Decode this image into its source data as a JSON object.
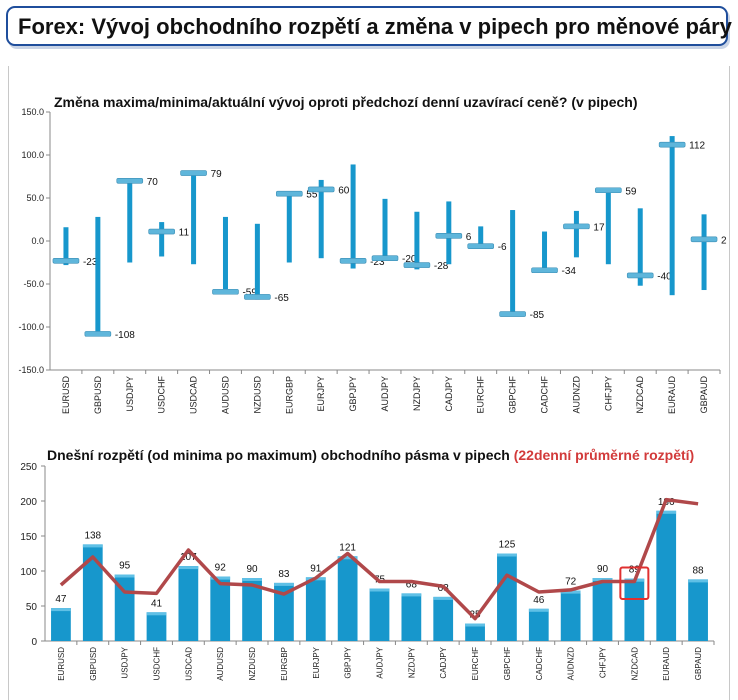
{
  "header": {
    "title": "Forex: Vývoj obchodního rozpětí a změna v pipech pro měnové páry"
  },
  "chart_data": [
    {
      "type": "range",
      "title": "Změna maxima/minima/aktuální vývoj oproti předchozí denní uzavírací ceně? (v pipech)",
      "categories": [
        "EURUSD",
        "GBPUSD",
        "USDJPY",
        "USDCHF",
        "USDCAD",
        "AUDUSD",
        "NZDUSD",
        "EURGBP",
        "EURJPY",
        "GBPJPY",
        "AUDJPY",
        "NZDJPY",
        "CADJPY",
        "EURCHF",
        "GBPCHF",
        "CADCHF",
        "AUDNZD",
        "CHFJPY",
        "NZDCAD",
        "EURAUD",
        "GBPAUD"
      ],
      "high": [
        16,
        28,
        70,
        22,
        80,
        28,
        20,
        55,
        71,
        89,
        49,
        34,
        46,
        17,
        36,
        11,
        35,
        62,
        38,
        122,
        31
      ],
      "low": [
        -28,
        -108,
        -25,
        -18,
        -27,
        -62,
        -68,
        -25,
        -20,
        -32,
        -22,
        -33,
        -27,
        -7,
        -87,
        -37,
        -19,
        -27,
        -52,
        -63,
        -57
      ],
      "current": [
        -23,
        -108,
        70,
        11,
        79,
        -59,
        -65,
        55,
        60,
        -23,
        -20,
        -28,
        6,
        -6,
        -85,
        -34,
        17,
        59,
        -40,
        112,
        2
      ],
      "labels": [
        "-23",
        "-108",
        "70",
        "11",
        "79",
        "-59",
        "-65",
        "55",
        "60",
        "-23",
        "-20",
        "-28",
        "6",
        "-6",
        "-85",
        "-34",
        "17",
        "59",
        "-40",
        "112",
        "2"
      ],
      "yticks": [
        "150.0",
        "100.0",
        "50.0",
        "0.0",
        "-50.0",
        "-100.0",
        "-150.0"
      ],
      "ylim": [
        -150,
        150
      ],
      "colors": {
        "range": "#1797cc",
        "marker": "#5fb6db"
      }
    },
    {
      "type": "bar+line",
      "title": "Dnešní rozpětí (od minima po maximum) obchodního pásma v pipech",
      "title_highlight": "(22denní průměrné rozpětí)",
      "categories": [
        "EURUSD",
        "GBPUSD",
        "USDJPY",
        "USDCHF",
        "USDCAD",
        "AUDUSD",
        "NZDUSD",
        "EURGBP",
        "EURJPY",
        "GBPJPY",
        "AUDJPY",
        "NZDJPY",
        "CADJPY",
        "EURCHF",
        "GBPCHF",
        "CADCHF",
        "AUDNZD",
        "CHFJPY",
        "NZDCAD",
        "EURAUD",
        "GBPAUD"
      ],
      "values": [
        47,
        138,
        95,
        41,
        107,
        92,
        90,
        83,
        91,
        121,
        75,
        68,
        63,
        25,
        125,
        46,
        72,
        90,
        89,
        186,
        88
      ],
      "labels": [
        "47",
        "138",
        "95",
        "41",
        "107",
        "92",
        "90",
        "83",
        "91",
        "121",
        "75",
        "68",
        "63",
        "25",
        "125",
        "46",
        "72",
        "90",
        "89",
        "186",
        "88"
      ],
      "average": [
        80,
        120,
        70,
        68,
        130,
        82,
        80,
        67,
        90,
        125,
        85,
        85,
        78,
        32,
        94,
        70,
        73,
        85,
        85,
        202,
        196
      ],
      "yticks": [
        "250",
        "200",
        "150",
        "100",
        "50",
        "0"
      ],
      "ylim": [
        0,
        250
      ],
      "highlight_category": "NZDCAD",
      "colors": {
        "bar": "#1797cc",
        "line": "#b0484a",
        "highlight": "#e03030",
        "title_highlight": "#d23a3a"
      }
    }
  ]
}
